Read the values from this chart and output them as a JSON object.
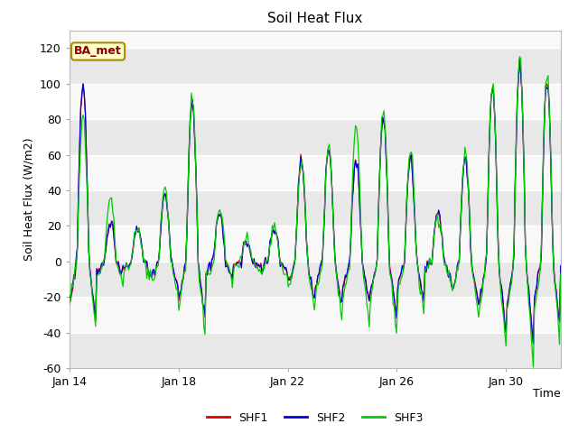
{
  "title": "Soil Heat Flux",
  "ylabel": "Soil Heat Flux (W/m2)",
  "xlabel": "Time",
  "ylim": [
    -60,
    130
  ],
  "yticks": [
    -60,
    -40,
    -20,
    0,
    20,
    40,
    60,
    80,
    100,
    120
  ],
  "colors": {
    "SHF1": "#dd0000",
    "SHF2": "#0000dd",
    "SHF3": "#00cc00"
  },
  "legend_label": "BA_met",
  "legend_bg": "#ffffcc",
  "legend_border": "#aa8800",
  "bg_outer": "#ffffff",
  "bg_inner": "#f5f5f5",
  "band_light": "#ebebeb",
  "band_dark": "#d8d8d8",
  "xtick_labels": [
    "Jan 14",
    "Jan 18",
    "Jan 22",
    "Jan 26",
    "Jan 30"
  ],
  "xtick_positions": [
    0,
    4,
    8,
    12,
    16
  ]
}
